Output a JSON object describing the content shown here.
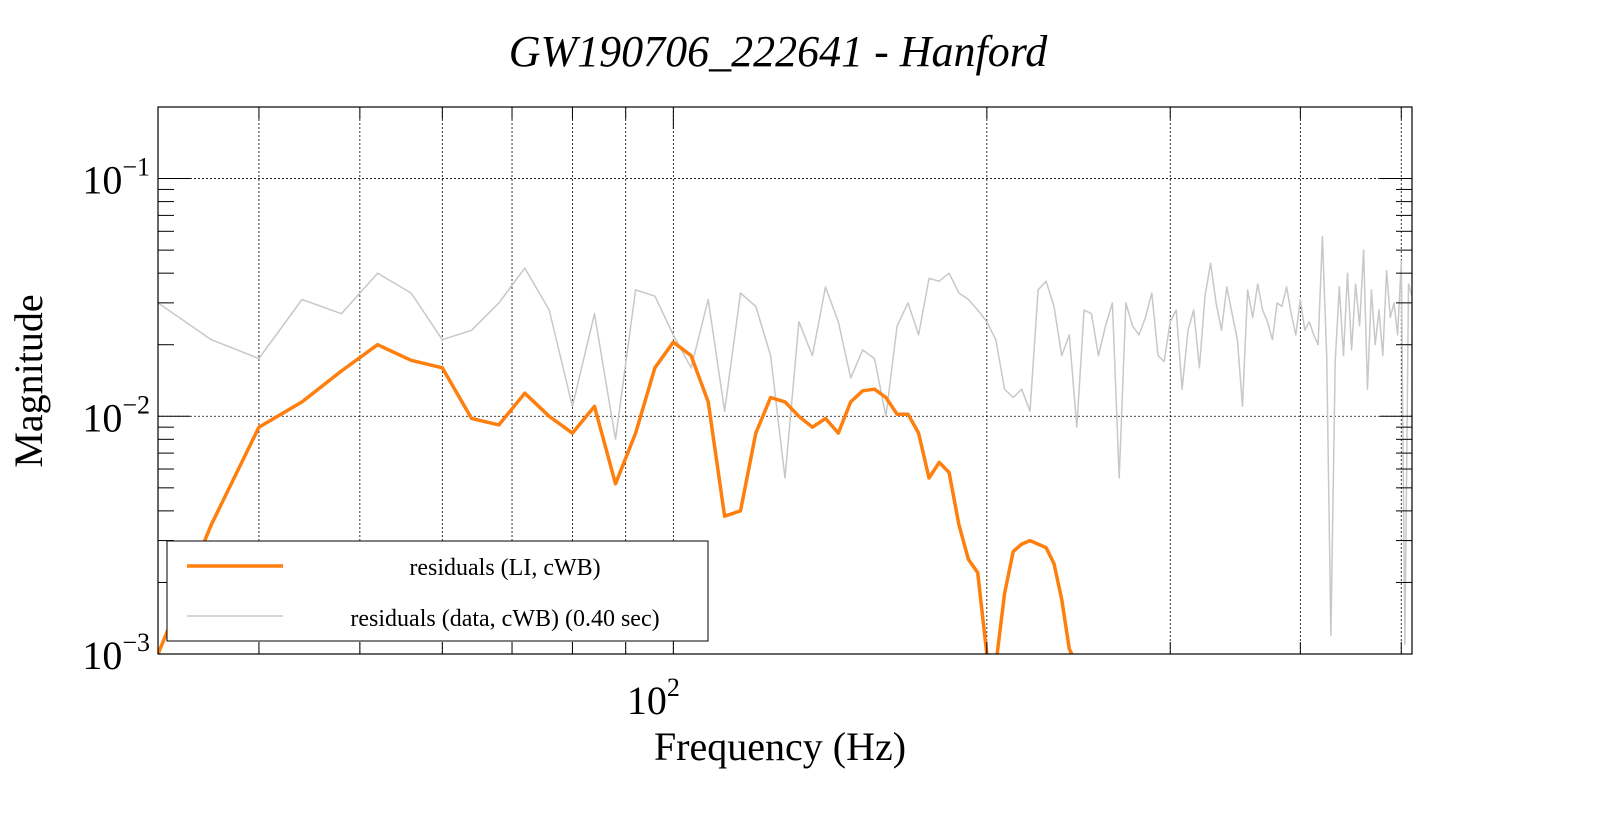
{
  "chart_data": {
    "type": "line",
    "title": "GW190706_222641 - Hanford",
    "xlabel": "Frequency (Hz)",
    "ylabel": "Magnitude",
    "xscale": "log",
    "yscale": "log",
    "xlim": [
      32,
      512
    ],
    "ylim": [
      0.001,
      0.2
    ],
    "grid": true,
    "x_tick_labels": [
      {
        "value": 100,
        "base": "10",
        "exp": "2"
      }
    ],
    "y_tick_labels": [
      {
        "value": 0.1,
        "base": "10",
        "exp": "−1"
      },
      {
        "value": 0.01,
        "base": "10",
        "exp": "−2"
      },
      {
        "value": 0.001,
        "base": "10",
        "exp": "−3"
      }
    ],
    "legend": {
      "position": "bottom-left",
      "entries": [
        {
          "label": "residuals (LI, cWB)",
          "color": "#ff7f0e"
        },
        {
          "label": "residuals (data, cWB) (0.40 sec)",
          "color": "#c8c8c8"
        }
      ]
    },
    "series": [
      {
        "name": "residuals (data, cWB) (0.40 sec)",
        "color": "#c8c8c8",
        "points": [
          [
            32,
            0.03
          ],
          [
            36,
            0.021
          ],
          [
            40,
            0.0175
          ],
          [
            44,
            0.031
          ],
          [
            48,
            0.027
          ],
          [
            52,
            0.04
          ],
          [
            56,
            0.033
          ],
          [
            60,
            0.021
          ],
          [
            64,
            0.023
          ],
          [
            68,
            0.03
          ],
          [
            72,
            0.042
          ],
          [
            76,
            0.028
          ],
          [
            80,
            0.011
          ],
          [
            84,
            0.027
          ],
          [
            88,
            0.008
          ],
          [
            92,
            0.034
          ],
          [
            96,
            0.032
          ],
          [
            100,
            0.022
          ],
          [
            104,
            0.016
          ],
          [
            108,
            0.031
          ],
          [
            112,
            0.0105
          ],
          [
            116,
            0.033
          ],
          [
            120,
            0.029
          ],
          [
            124,
            0.018
          ],
          [
            128,
            0.0055
          ],
          [
            132,
            0.025
          ],
          [
            136,
            0.018
          ],
          [
            140,
            0.035
          ],
          [
            144,
            0.025
          ],
          [
            148,
            0.0145
          ],
          [
            152,
            0.019
          ],
          [
            156,
            0.0175
          ],
          [
            160,
            0.01
          ],
          [
            164,
            0.024
          ],
          [
            168,
            0.03
          ],
          [
            172,
            0.022
          ],
          [
            176,
            0.038
          ],
          [
            180,
            0.037
          ],
          [
            184,
            0.04
          ],
          [
            188,
            0.033
          ],
          [
            192,
            0.031
          ],
          [
            196,
            0.028
          ],
          [
            200,
            0.025
          ],
          [
            204,
            0.021
          ],
          [
            208,
            0.013
          ],
          [
            212,
            0.012
          ],
          [
            216,
            0.013
          ],
          [
            220,
            0.0105
          ],
          [
            224,
            0.034
          ],
          [
            228,
            0.037
          ],
          [
            232,
            0.029
          ],
          [
            236,
            0.018
          ],
          [
            240,
            0.022
          ],
          [
            244,
            0.009
          ],
          [
            248,
            0.028
          ],
          [
            252,
            0.027
          ],
          [
            256,
            0.018
          ],
          [
            260,
            0.024
          ],
          [
            264,
            0.03
          ],
          [
            268,
            0.0055
          ],
          [
            272,
            0.03
          ],
          [
            276,
            0.024
          ],
          [
            280,
            0.022
          ],
          [
            284,
            0.026
          ],
          [
            288,
            0.033
          ],
          [
            292,
            0.018
          ],
          [
            296,
            0.017
          ],
          [
            300,
            0.025
          ],
          [
            304,
            0.028
          ],
          [
            308,
            0.013
          ],
          [
            312,
            0.023
          ],
          [
            316,
            0.028
          ],
          [
            320,
            0.016
          ],
          [
            324,
            0.032
          ],
          [
            328,
            0.044
          ],
          [
            332,
            0.03
          ],
          [
            336,
            0.023
          ],
          [
            340,
            0.035
          ],
          [
            344,
            0.027
          ],
          [
            348,
            0.021
          ],
          [
            352,
            0.011
          ],
          [
            356,
            0.034
          ],
          [
            360,
            0.026
          ],
          [
            364,
            0.036
          ],
          [
            368,
            0.028
          ],
          [
            372,
            0.025
          ],
          [
            376,
            0.021
          ],
          [
            380,
            0.03
          ],
          [
            384,
            0.029
          ],
          [
            388,
            0.035
          ],
          [
            392,
            0.027
          ],
          [
            396,
            0.022
          ],
          [
            400,
            0.031
          ],
          [
            404,
            0.023
          ],
          [
            408,
            0.025
          ],
          [
            412,
            0.022
          ],
          [
            416,
            0.02
          ],
          [
            420,
            0.057
          ],
          [
            424,
            0.018
          ],
          [
            428,
            0.0012
          ],
          [
            432,
            0.017
          ],
          [
            436,
            0.035
          ],
          [
            440,
            0.018
          ],
          [
            444,
            0.04
          ],
          [
            448,
            0.019
          ],
          [
            452,
            0.036
          ],
          [
            456,
            0.024
          ],
          [
            460,
            0.05
          ],
          [
            464,
            0.013
          ],
          [
            468,
            0.034
          ],
          [
            472,
            0.02
          ],
          [
            476,
            0.028
          ],
          [
            480,
            0.018
          ],
          [
            484,
            0.041
          ],
          [
            488,
            0.026
          ],
          [
            492,
            0.03
          ],
          [
            496,
            0.022
          ],
          [
            500,
            0.045
          ],
          [
            504,
            0.0011
          ],
          [
            508,
            0.036
          ],
          [
            512,
            0.032
          ]
        ]
      },
      {
        "name": "residuals (LI, cWB)",
        "color": "#ff7f0e",
        "points": [
          [
            32,
            0.001
          ],
          [
            36,
            0.0035
          ],
          [
            40,
            0.009
          ],
          [
            44,
            0.0115
          ],
          [
            48,
            0.0155
          ],
          [
            52,
            0.02
          ],
          [
            56,
            0.0172
          ],
          [
            60,
            0.016
          ],
          [
            64,
            0.0098
          ],
          [
            68,
            0.0092
          ],
          [
            72,
            0.0125
          ],
          [
            76,
            0.01
          ],
          [
            80,
            0.0085
          ],
          [
            84,
            0.011
          ],
          [
            88,
            0.0052
          ],
          [
            92,
            0.0085
          ],
          [
            96,
            0.016
          ],
          [
            100,
            0.0205
          ],
          [
            104,
            0.018
          ],
          [
            108,
            0.0115
          ],
          [
            112,
            0.0038
          ],
          [
            116,
            0.004
          ],
          [
            120,
            0.0085
          ],
          [
            124,
            0.012
          ],
          [
            128,
            0.0115
          ],
          [
            132,
            0.01
          ],
          [
            136,
            0.009
          ],
          [
            140,
            0.0098
          ],
          [
            144,
            0.0085
          ],
          [
            148,
            0.0115
          ],
          [
            152,
            0.0128
          ],
          [
            156,
            0.013
          ],
          [
            160,
            0.012
          ],
          [
            164,
            0.0102
          ],
          [
            168,
            0.0102
          ],
          [
            172,
            0.0085
          ],
          [
            176,
            0.0055
          ],
          [
            180,
            0.0064
          ],
          [
            184,
            0.0058
          ],
          [
            188,
            0.0035
          ],
          [
            192,
            0.0025
          ],
          [
            196,
            0.0022
          ],
          [
            200,
            0.001
          ],
          [
            204,
            0.0009
          ],
          [
            208,
            0.0018
          ],
          [
            212,
            0.0027
          ],
          [
            216,
            0.0029
          ],
          [
            220,
            0.003
          ],
          [
            224,
            0.0029
          ],
          [
            228,
            0.0028
          ],
          [
            232,
            0.0024
          ],
          [
            236,
            0.0017
          ],
          [
            240,
            0.00105
          ],
          [
            244,
            0.0009
          ]
        ]
      }
    ]
  }
}
